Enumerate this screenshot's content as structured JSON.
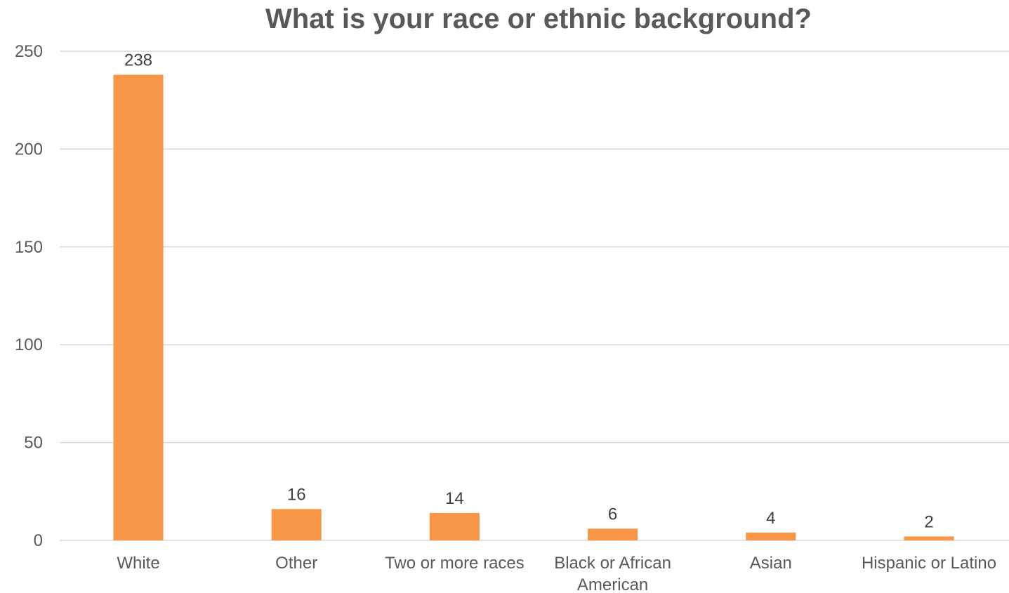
{
  "chart_data": {
    "type": "bar",
    "title": "What is your race or ethnic background?",
    "categories": [
      "White",
      "Other",
      "Two or more races",
      "Black or African American",
      "Asian",
      "Hispanic or Latino"
    ],
    "category_lines": [
      [
        "White"
      ],
      [
        "Other"
      ],
      [
        "Two or more races"
      ],
      [
        "Black or African",
        "American"
      ],
      [
        "Asian"
      ],
      [
        "Hispanic or Latino"
      ]
    ],
    "values": [
      238,
      16,
      14,
      6,
      4,
      2
    ],
    "xlabel": "",
    "ylabel": "",
    "ylim": [
      0,
      250
    ],
    "yticks": [
      0,
      50,
      100,
      150,
      200,
      250
    ],
    "grid": true,
    "data_labels": true,
    "bar_color": "#F79646"
  }
}
